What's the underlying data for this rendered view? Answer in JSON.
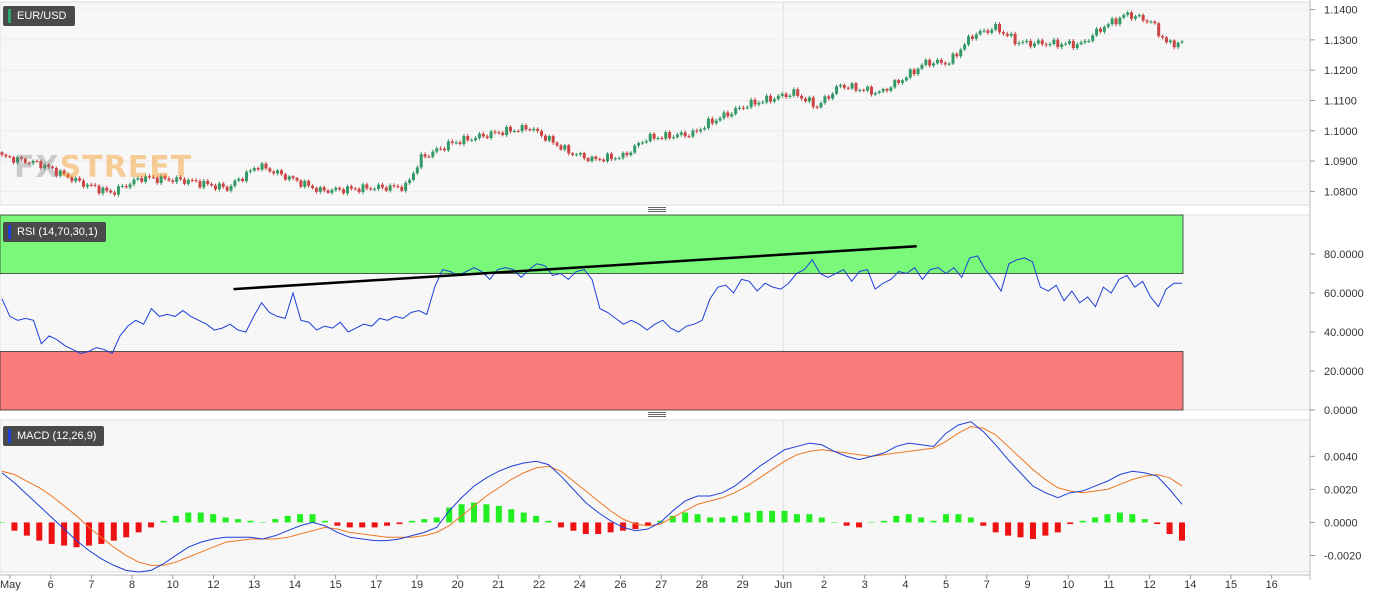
{
  "symbol": "EUR/USD",
  "rsi_label": "RSI (14,70,30,1)",
  "macd_label": "MACD (12,26,9)",
  "logo": {
    "part1": "FX",
    "part2": "STREET"
  },
  "colors": {
    "up": "#339966",
    "down": "#cc4444",
    "rsi_line": "#1f3fd8",
    "overbought": "#79f879",
    "oversold": "#f97b7b",
    "macd": "#1f3fd8",
    "signal": "#ee7722",
    "hist_pos": "#22ee22",
    "hist_neg": "#ee1111",
    "trendline": "#000000"
  },
  "chart_data": [
    {
      "type": "candlestick",
      "title": "EUR/USD",
      "ylim": [
        1.0755,
        1.1425
      ],
      "y_ticks": [
        "1.1400",
        "1.1300",
        "1.1200",
        "1.1100",
        "1.1000",
        "1.0900",
        "1.0800"
      ],
      "x_ticks": [
        "May",
        "6",
        "7",
        "8",
        "10",
        "12",
        "13",
        "14",
        "15",
        "17",
        "19",
        "20",
        "21",
        "22",
        "24",
        "26",
        "27",
        "28",
        "29",
        "Jun",
        "2",
        "3",
        "4",
        "5",
        "7",
        "9",
        "10",
        "11",
        "12",
        "14",
        "15",
        "16"
      ],
      "grid": true
    },
    {
      "type": "line",
      "title": "RSI (14,70,30,1)",
      "ylim": [
        0,
        100
      ],
      "y_ticks": [
        "80.0000",
        "60.0000",
        "40.0000",
        "20.0000",
        "0.0000"
      ],
      "overbought": 70,
      "oversold": 30,
      "series": [
        {
          "values": [
            57,
            48,
            46,
            47,
            46,
            34,
            38,
            36,
            33,
            31,
            29,
            30,
            32,
            31,
            29,
            38,
            43,
            46,
            44,
            52,
            48,
            49,
            48,
            51,
            48,
            46,
            44,
            41,
            42,
            44,
            41,
            40,
            48,
            55,
            50,
            48,
            47,
            60,
            46,
            45,
            41,
            43,
            42,
            45,
            40,
            42,
            44,
            43,
            47,
            46,
            48,
            47,
            50,
            51,
            49,
            63,
            72,
            71,
            69,
            71,
            73,
            71,
            67,
            72,
            73,
            72,
            68,
            72,
            75,
            74,
            69,
            70,
            67,
            71,
            72,
            67,
            52,
            50,
            47,
            44,
            46,
            44,
            41,
            44,
            46,
            42,
            40,
            43,
            44,
            46,
            57,
            63,
            64,
            60,
            67,
            66,
            61,
            65,
            63,
            62,
            65,
            70,
            72,
            77,
            70,
            68,
            70,
            72,
            66,
            71,
            72,
            62,
            65,
            67,
            71,
            70,
            73,
            67,
            72,
            73,
            70,
            73,
            68,
            78,
            79,
            72,
            67,
            61,
            75,
            77,
            78,
            76,
            63,
            61,
            64,
            56,
            61,
            55,
            58,
            53,
            63,
            60,
            67,
            69,
            63,
            66,
            58,
            53,
            62,
            65,
            65
          ]
        }
      ],
      "trendline": {
        "x": [
          "3",
          "12"
        ],
        "y": [
          84,
          62
        ]
      }
    },
    {
      "type": "line",
      "title": "MACD (12,26,9)",
      "ylim": [
        -0.003,
        0.0062
      ],
      "y_ticks": [
        "0.0040",
        "0.0020",
        "0.0000",
        "-0.0020"
      ],
      "series": [
        {
          "values": [
            0.003,
            0.0024,
            0.0017,
            0.001,
            0.0003,
            -0.0004,
            -0.0011,
            -0.0017,
            -0.0022,
            -0.0026,
            -0.0029,
            -0.003,
            -0.0029,
            -0.0025,
            -0.002,
            -0.0015,
            -0.0012,
            -0.001,
            -0.0009,
            -0.0009,
            -0.0009,
            -0.001,
            -0.0008,
            -0.0005,
            -0.0002,
            0.0,
            -0.0002,
            -0.0006,
            -0.0009,
            -0.001,
            -0.0011,
            -0.0011,
            -0.001,
            -0.0008,
            -0.0006,
            -0.0003,
            0.0007,
            0.0015,
            0.0022,
            0.0027,
            0.0031,
            0.0034,
            0.0036,
            0.0037,
            0.0035,
            0.0028,
            0.002,
            0.0012,
            0.0006,
            0.0001,
            -0.0003,
            -0.0005,
            -0.0004,
            0.0,
            0.0007,
            0.0013,
            0.0016,
            0.0016,
            0.0018,
            0.0022,
            0.0028,
            0.0034,
            0.0039,
            0.0044,
            0.0046,
            0.0048,
            0.0047,
            0.0043,
            0.004,
            0.0038,
            0.004,
            0.0042,
            0.0046,
            0.0048,
            0.0047,
            0.0046,
            0.0054,
            0.0059,
            0.0061,
            0.0055,
            0.0047,
            0.0038,
            0.003,
            0.0022,
            0.0018,
            0.0015,
            0.0018,
            0.0019,
            0.0022,
            0.0025,
            0.0029,
            0.0031,
            0.003,
            0.0028,
            0.002,
            0.0011
          ]
        },
        {
          "values": [
            0.0031,
            0.0029,
            0.0025,
            0.0021,
            0.0016,
            0.001,
            0.0004,
            -0.0003,
            -0.0009,
            -0.0015,
            -0.002,
            -0.0024,
            -0.0026,
            -0.0026,
            -0.0024,
            -0.0021,
            -0.0018,
            -0.0015,
            -0.0012,
            -0.0011,
            -0.001,
            -0.001,
            -0.001,
            -0.0009,
            -0.0007,
            -0.0005,
            -0.0003,
            -0.0004,
            -0.0006,
            -0.0007,
            -0.0008,
            -0.0009,
            -0.0009,
            -0.0009,
            -0.0008,
            -0.0006,
            -0.0002,
            0.0004,
            0.001,
            0.0016,
            0.0021,
            0.0026,
            0.003,
            0.0033,
            0.0034,
            0.0031,
            0.0025,
            0.0019,
            0.0013,
            0.0007,
            0.0002,
            -0.0001,
            -0.0002,
            -0.0001,
            0.0003,
            0.0007,
            0.0011,
            0.0013,
            0.0015,
            0.0018,
            0.0022,
            0.0027,
            0.0032,
            0.0037,
            0.0041,
            0.0043,
            0.0044,
            0.0043,
            0.0042,
            0.0041,
            0.004,
            0.0041,
            0.0042,
            0.0043,
            0.0044,
            0.0045,
            0.0049,
            0.0054,
            0.0058,
            0.0057,
            0.0053,
            0.0046,
            0.0039,
            0.0032,
            0.0026,
            0.0021,
            0.0019,
            0.0018,
            0.0019,
            0.002,
            0.0023,
            0.0026,
            0.0028,
            0.0029,
            0.0027,
            0.0022
          ]
        }
      ],
      "histogram": [
        0.0,
        -0.0005,
        -0.0008,
        -0.0011,
        -0.0013,
        -0.0014,
        -0.0015,
        -0.0014,
        -0.0013,
        -0.0011,
        -0.0009,
        -0.0006,
        -0.0003,
        0.0001,
        0.0004,
        0.0006,
        0.0006,
        0.0005,
        0.0003,
        0.0002,
        0.0001,
        0.0,
        0.0002,
        0.0004,
        0.0005,
        0.0005,
        0.0001,
        -0.0002,
        -0.0003,
        -0.0003,
        -0.0003,
        -0.0002,
        -0.0001,
        0.0001,
        0.0002,
        0.0003,
        0.0009,
        0.0011,
        0.0012,
        0.0011,
        0.001,
        0.0008,
        0.0006,
        0.0004,
        0.0001,
        -0.0003,
        -0.0005,
        -0.0007,
        -0.0007,
        -0.0006,
        -0.0005,
        -0.0004,
        -0.0002,
        0.0001,
        0.0004,
        0.0006,
        0.0005,
        0.0003,
        0.0003,
        0.0004,
        0.0006,
        0.0007,
        0.0007,
        0.0007,
        0.0005,
        0.0005,
        0.0003,
        0.0,
        -0.0002,
        -0.0003,
        0.0,
        0.0001,
        0.0004,
        0.0005,
        0.0003,
        0.0001,
        0.0005,
        0.0005,
        0.0003,
        -0.0002,
        -0.0006,
        -0.0008,
        -0.0009,
        -0.001,
        -0.0008,
        -0.0006,
        -0.0001,
        0.0001,
        0.0003,
        0.0005,
        0.0006,
        0.0005,
        0.0002,
        -0.0001,
        -0.0007,
        -0.0011
      ]
    }
  ]
}
